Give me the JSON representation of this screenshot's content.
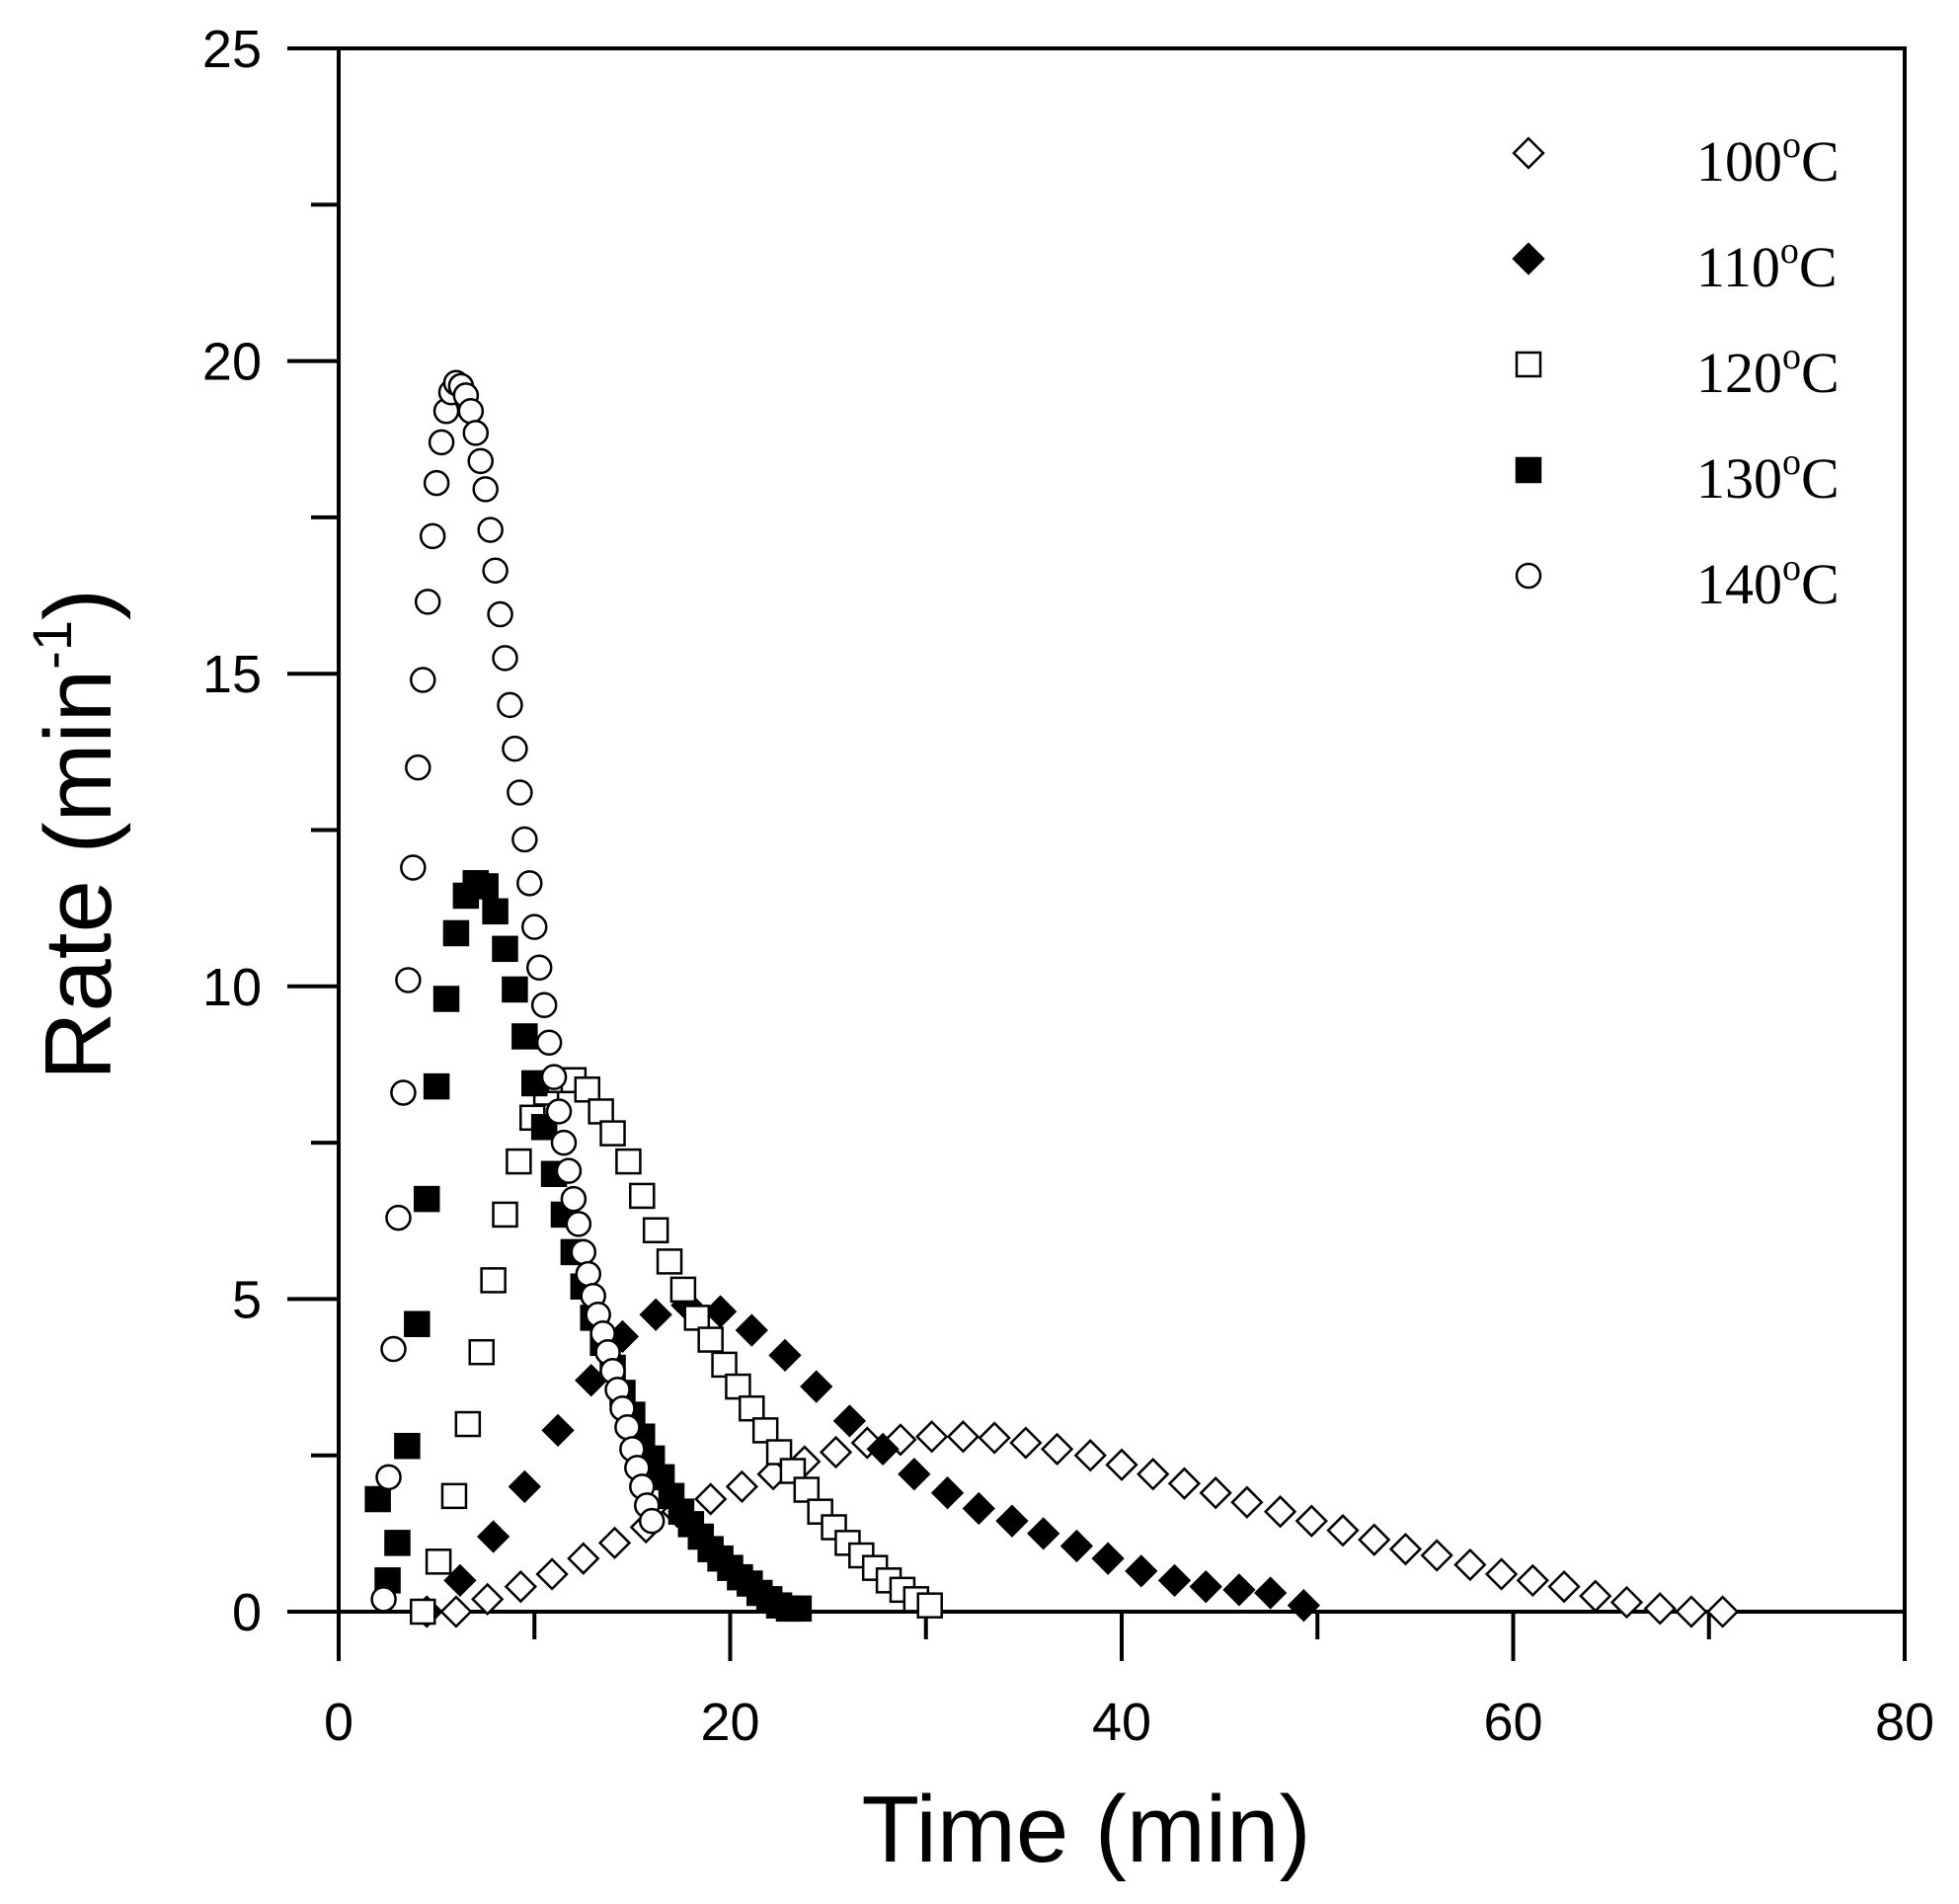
{
  "chart_data": {
    "type": "scatter",
    "title": "",
    "xlabel": "Time (min)",
    "ylabel": "Rate (min-1)",
    "ylabel_main": "Rate (min",
    "ylabel_sup": "-1",
    "ylabel_close": ")",
    "xlim": [
      0,
      80
    ],
    "ylim": [
      0,
      25
    ],
    "xticks": [
      "0",
      "20",
      "40",
      "60",
      "80"
    ],
    "yticks": [
      "0",
      "5",
      "10",
      "15",
      "20",
      "25"
    ],
    "grid": false,
    "legend_position": "top-right",
    "series": [
      {
        "name": "100oC",
        "label_main": "100",
        "label_sup": "o",
        "label_unit": "C",
        "marker": "diamond",
        "filled": false,
        "x": [
          6.0,
          7.6,
          9.3,
          10.9,
          12.5,
          14.1,
          15.7,
          17.3,
          19.0,
          20.6,
          22.2,
          23.8,
          25.4,
          27.0,
          28.7,
          30.3,
          31.9,
          33.5,
          35.1,
          36.7,
          38.4,
          40.0,
          41.6,
          43.2,
          44.8,
          46.4,
          48.1,
          49.7,
          51.3,
          52.9,
          54.5,
          56.1,
          57.8,
          59.4,
          61.0,
          62.6,
          64.2,
          65.8,
          67.5,
          69.1,
          70.7
        ],
        "y": [
          0.0,
          0.2,
          0.4,
          0.6,
          0.85,
          1.1,
          1.35,
          1.6,
          1.8,
          2.0,
          2.2,
          2.4,
          2.55,
          2.7,
          2.75,
          2.8,
          2.8,
          2.78,
          2.7,
          2.6,
          2.5,
          2.35,
          2.2,
          2.05,
          1.9,
          1.75,
          1.6,
          1.45,
          1.3,
          1.15,
          1.0,
          0.9,
          0.75,
          0.6,
          0.5,
          0.4,
          0.25,
          0.15,
          0.05,
          0.0,
          0.0
        ]
      },
      {
        "name": "110oC",
        "label_main": "110",
        "label_sup": "o",
        "label_unit": "C",
        "marker": "diamond",
        "filled": true,
        "x": [
          4.5,
          6.2,
          7.9,
          9.5,
          11.2,
          12.9,
          14.5,
          16.2,
          17.8,
          19.5,
          21.1,
          22.8,
          24.4,
          26.1,
          27.8,
          29.4,
          31.1,
          32.7,
          34.4,
          36.0,
          37.7,
          39.3,
          41.0,
          42.7,
          44.3,
          46.0,
          47.6,
          49.3
        ],
        "y": [
          0.0,
          0.5,
          1.2,
          2.0,
          2.9,
          3.7,
          4.4,
          4.75,
          4.9,
          4.8,
          4.5,
          4.1,
          3.6,
          3.05,
          2.6,
          2.2,
          1.9,
          1.65,
          1.45,
          1.25,
          1.05,
          0.85,
          0.65,
          0.5,
          0.4,
          0.35,
          0.3,
          0.1
        ]
      },
      {
        "name": "120oC",
        "label_main": "120",
        "label_sup": "o",
        "label_unit": "C",
        "marker": "square",
        "filled": false,
        "x": [
          4.3,
          5.1,
          5.9,
          6.6,
          7.3,
          7.9,
          8.5,
          9.2,
          9.9,
          10.6,
          11.3,
          12.0,
          12.7,
          13.4,
          14.0,
          14.8,
          15.5,
          16.2,
          16.9,
          17.6,
          18.3,
          19.0,
          19.7,
          20.4,
          21.1,
          21.8,
          22.5,
          23.2,
          23.9,
          24.6,
          25.3,
          26.0,
          26.7,
          27.4,
          28.1,
          28.8,
          29.5,
          30.2
        ],
        "y": [
          0.0,
          0.8,
          1.85,
          3.0,
          4.15,
          5.3,
          6.35,
          7.2,
          7.9,
          8.3,
          8.5,
          8.5,
          8.35,
          8.0,
          7.65,
          7.2,
          6.65,
          6.1,
          5.6,
          5.15,
          4.7,
          4.35,
          3.95,
          3.6,
          3.25,
          2.9,
          2.55,
          2.25,
          1.95,
          1.6,
          1.35,
          1.1,
          0.9,
          0.7,
          0.5,
          0.35,
          0.2,
          0.1
        ]
      },
      {
        "name": "130oC",
        "label_main": "130",
        "label_sup": "o",
        "label_unit": "C",
        "marker": "square",
        "filled": true,
        "x": [
          2.0,
          2.5,
          3.0,
          3.5,
          4.0,
          4.5,
          5.0,
          5.5,
          6.0,
          6.5,
          7.0,
          7.5,
          8.0,
          8.5,
          9.0,
          9.5,
          10.0,
          10.5,
          11.0,
          11.5,
          12.0,
          12.5,
          13.0,
          13.5,
          14.0,
          14.5,
          15.0,
          15.5,
          16.0,
          16.5,
          17.0,
          17.5,
          18.0,
          18.5,
          19.0,
          19.5,
          20.0,
          20.5,
          21.0,
          21.5,
          22.0,
          22.5,
          23.0,
          23.5
        ],
        "y": [
          1.8,
          0.5,
          1.1,
          2.65,
          4.6,
          6.6,
          8.4,
          9.8,
          10.85,
          11.45,
          11.65,
          11.6,
          11.2,
          10.6,
          9.95,
          9.2,
          8.45,
          7.75,
          7.0,
          6.35,
          5.75,
          5.2,
          4.7,
          4.3,
          3.9,
          3.5,
          3.15,
          2.8,
          2.45,
          2.15,
          1.85,
          1.6,
          1.4,
          1.2,
          1.0,
          0.85,
          0.7,
          0.55,
          0.45,
          0.3,
          0.2,
          0.1,
          0.05,
          0.05
        ]
      },
      {
        "name": "140oC",
        "label_main": "140",
        "label_sup": "o",
        "label_unit": "C",
        "marker": "circle",
        "filled": false,
        "x": [
          2.3,
          2.55,
          2.8,
          3.05,
          3.3,
          3.55,
          3.8,
          4.05,
          4.3,
          4.55,
          4.8,
          5.0,
          5.25,
          5.5,
          5.75,
          6.0,
          6.25,
          6.5,
          6.75,
          7.0,
          7.25,
          7.5,
          7.75,
          8.0,
          8.25,
          8.5,
          8.75,
          9.0,
          9.25,
          9.5,
          9.75,
          10.0,
          10.25,
          10.5,
          10.75,
          11.0,
          11.25,
          11.5,
          11.75,
          12.0,
          12.25,
          12.5,
          12.75,
          13.0,
          13.25,
          13.5,
          13.75,
          14.0,
          14.25,
          14.5,
          14.75,
          15.0,
          15.25,
          15.5,
          15.75,
          16.0
        ],
        "y": [
          0.2,
          2.15,
          4.2,
          6.3,
          8.3,
          10.1,
          11.9,
          13.5,
          14.9,
          16.15,
          17.2,
          18.05,
          18.7,
          19.2,
          19.5,
          19.65,
          19.6,
          19.45,
          19.2,
          18.85,
          18.4,
          17.95,
          17.3,
          16.65,
          15.95,
          15.25,
          14.5,
          13.8,
          13.1,
          12.35,
          11.65,
          10.95,
          10.3,
          9.7,
          9.1,
          8.55,
          8.0,
          7.5,
          7.05,
          6.6,
          6.2,
          5.75,
          5.4,
          5.05,
          4.75,
          4.45,
          4.15,
          3.85,
          3.55,
          3.25,
          2.95,
          2.6,
          2.3,
          2.0,
          1.7,
          1.45
        ]
      }
    ]
  }
}
